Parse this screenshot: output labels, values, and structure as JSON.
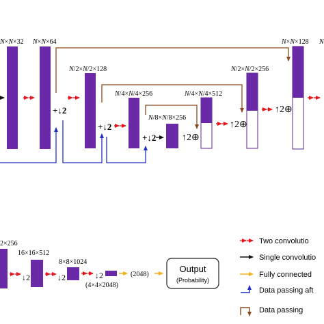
{
  "colors": {
    "block": "#6a2aa8",
    "block_border": "#5b2590",
    "two_conv": "#e8141c",
    "single_conv": "#111111",
    "fully_connected": "#f2b01e",
    "data_passing_after": "#1f2fbf",
    "data_passing": "#8b4a1e"
  },
  "labels": {
    "l_n32": {
      "n": "N",
      "mid": "×",
      "n2": "N",
      "tail": "×32"
    },
    "l_n64": {
      "n": "N",
      "mid": "×",
      "n2": "N",
      "tail": "×64"
    },
    "l_n2_128": {
      "n": "N",
      "mid": "/2×",
      "n2": "N",
      "tail": "/2×128"
    },
    "l_n4_256": {
      "n": "N",
      "mid": "/4×",
      "n2": "N",
      "tail": "/4×256"
    },
    "l_n8_256": {
      "n": "N",
      "mid": "/8×",
      "n2": "N",
      "tail": "/8×256"
    },
    "l_n4_512": {
      "n": "N",
      "mid": "/4×",
      "n2": "N",
      "tail": "/4×512"
    },
    "l_n2_256": {
      "n": "N",
      "mid": "/2×",
      "n2": "N",
      "tail": "/2×256"
    },
    "l_nn128": {
      "n": "N",
      "mid": "×",
      "n2": "N",
      "tail": "×128"
    },
    "l_right_n": "N",
    "plus_down_1": "+↓2",
    "plus_down_2": "+↓2",
    "plus_down_3": "+↓2",
    "up_oplus_1": "↑2⊕",
    "up_oplus_2": "↑2⊕",
    "up_oplus_3": "↑2⊕",
    "b_256": "2×256",
    "b_16": "16×16×512",
    "b_8": "8×8×1024",
    "b_down_1": "↓2",
    "b_down_2": "↓2",
    "b_down_3": "↓2",
    "b_4": "(4×4×2048)",
    "b_2048": "(2048)"
  },
  "output_box": {
    "title": "Output",
    "subtitle": "(Probability)"
  },
  "legend": [
    {
      "label": "Two convolutio",
      "icon": "red-double-arrow-icon"
    },
    {
      "label": "Single convolutio",
      "icon": "black-arrow-icon"
    },
    {
      "label": "Fully connected",
      "icon": "yellow-arrow-icon"
    },
    {
      "label": "Data passing aft",
      "icon": "blue-corner-arrow-icon"
    },
    {
      "label": "Data passing",
      "icon": "brown-corner-arrow-icon"
    }
  ]
}
